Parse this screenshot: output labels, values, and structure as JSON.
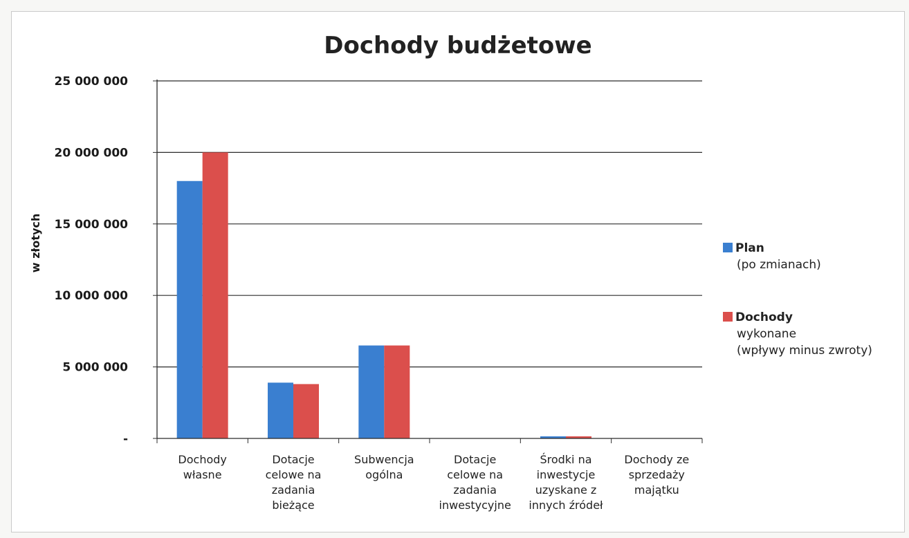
{
  "chart_data": {
    "type": "bar",
    "title": "Dochody budżetowe",
    "ylabel": "w złotych",
    "xlabel": "",
    "ylim": [
      0,
      25000000
    ],
    "yticks": [
      0,
      5000000,
      10000000,
      15000000,
      20000000,
      25000000
    ],
    "ytick_labels": [
      "-",
      "5 000 000",
      "10 000 000",
      "15 000 000",
      "20 000 000",
      "25 000 000"
    ],
    "grid": true,
    "legend_position": "right",
    "categories": [
      [
        "Dochody",
        "własne"
      ],
      [
        "Dotacje",
        "celowe na",
        "zadania",
        "bieżące"
      ],
      [
        "Subwencja",
        "ogólna"
      ],
      [
        "Dotacje",
        "celowe na",
        "zadania",
        "inwestycyjne"
      ],
      [
        "Środki na",
        "inwestycje",
        "uzyskane z",
        "innych źródeł"
      ],
      [
        "Dochody ze",
        "sprzedaży",
        "majątku"
      ]
    ],
    "series": [
      {
        "name": [
          "Plan",
          "(po zmianach)"
        ],
        "color": "#3a7fd0",
        "values": [
          18000000,
          3900000,
          6500000,
          0,
          100000,
          0
        ]
      },
      {
        "name": [
          "Dochody",
          "wykonane",
          "(wpływy minus zwroty)"
        ],
        "color": "#db4f4c",
        "values": [
          20000000,
          3800000,
          6500000,
          0,
          100000,
          0
        ]
      }
    ]
  }
}
